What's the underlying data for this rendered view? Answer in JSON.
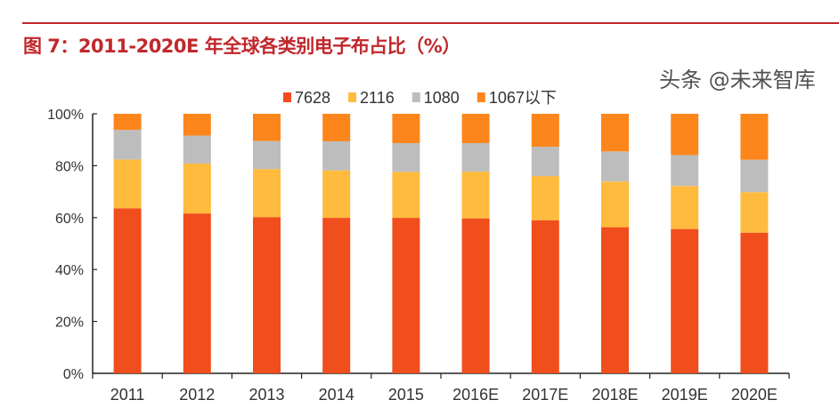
{
  "header": {
    "title": "图 7：2011-2020E 年全球各类别电子布占比（%）"
  },
  "watermark": "头条 @未来智库",
  "chart_data": {
    "type": "bar",
    "stacked": true,
    "title": "图 7：2011-2020E 年全球各类别电子布占比（%）",
    "xlabel": "",
    "ylabel": "",
    "ylim": [
      0,
      100
    ],
    "yticks": [
      "0%",
      "20%",
      "40%",
      "60%",
      "80%",
      "100%"
    ],
    "yticks_values": [
      0,
      20,
      40,
      60,
      80,
      100
    ],
    "grid": false,
    "legend": "top",
    "categories": [
      "2011",
      "2012",
      "2013",
      "2014",
      "2015",
      "2016E",
      "2017E",
      "2018E",
      "2019E",
      "2020E"
    ],
    "series": [
      {
        "name": "7628",
        "color": "#f04e1c",
        "values": [
          63.6,
          61.6,
          60.2,
          59.9,
          59.9,
          59.7,
          59.0,
          56.3,
          55.6,
          54.2
        ]
      },
      {
        "name": "2116",
        "color": "#ffbb3d",
        "values": [
          18.8,
          19.2,
          18.5,
          18.3,
          17.7,
          18.0,
          17.0,
          17.6,
          16.6,
          15.6
        ]
      },
      {
        "name": "1080",
        "color": "#bdbdbd",
        "values": [
          11.4,
          10.8,
          10.8,
          11.2,
          11.1,
          11.0,
          11.3,
          11.6,
          11.9,
          12.5
        ]
      },
      {
        "name": "1067以下",
        "color": "#fd861c",
        "values": [
          6.2,
          8.4,
          10.5,
          10.6,
          11.3,
          11.3,
          12.7,
          14.5,
          15.9,
          17.7
        ]
      }
    ]
  }
}
